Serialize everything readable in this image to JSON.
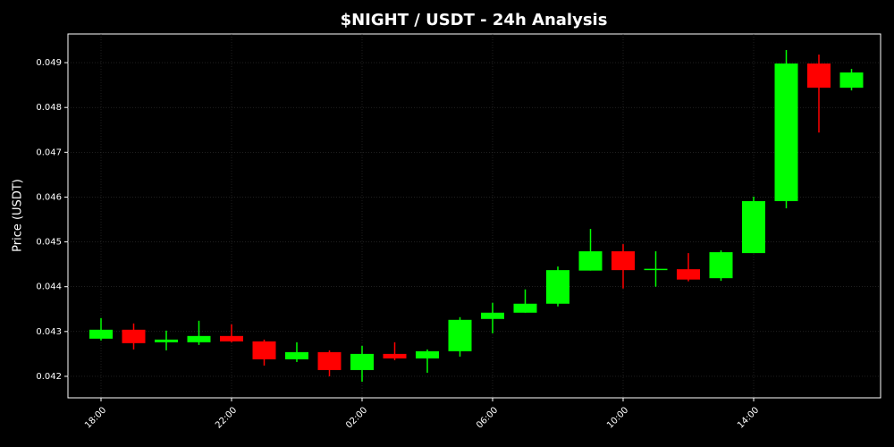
{
  "chart_data": {
    "type": "candlestick",
    "title": "$NIGHT / USDT - 24h Analysis",
    "y_label": "Price (USDT)",
    "categories": [
      "18:00",
      null,
      null,
      null,
      "22:00",
      null,
      null,
      null,
      "02:00",
      null,
      null,
      null,
      "06:00",
      null,
      null,
      null,
      "10:00",
      null,
      null,
      null,
      "14:00",
      null,
      null,
      null
    ],
    "open": [
      0.04284,
      0.04304,
      0.04276,
      0.04276,
      0.0429,
      0.04278,
      0.04238,
      0.04254,
      0.04214,
      0.0425,
      0.0424,
      0.04256,
      0.04328,
      0.04342,
      0.04362,
      0.04436,
      0.04479,
      0.04437,
      0.04439,
      0.04419,
      0.04475,
      0.04591,
      0.04898,
      0.04844
    ],
    "high": [
      0.0433,
      0.04318,
      0.04302,
      0.04324,
      0.04316,
      0.04282,
      0.04276,
      0.04258,
      0.04268,
      0.04276,
      0.0426,
      0.04332,
      0.04364,
      0.04394,
      0.04445,
      0.04529,
      0.04495,
      0.04479,
      0.04475,
      0.04481,
      0.04601,
      0.04928,
      0.04918,
      0.04886
    ],
    "low": [
      0.0428,
      0.0426,
      0.04258,
      0.0427,
      0.04276,
      0.04224,
      0.04232,
      0.042,
      0.04188,
      0.04236,
      0.04208,
      0.04244,
      0.04296,
      0.04342,
      0.04356,
      0.04436,
      0.04396,
      0.044,
      0.04412,
      0.04413,
      0.04475,
      0.04575,
      0.04744,
      0.04838
    ],
    "close": [
      0.04304,
      0.04274,
      0.04282,
      0.0429,
      0.04278,
      0.04238,
      0.04254,
      0.04214,
      0.0425,
      0.0424,
      0.04256,
      0.04326,
      0.04342,
      0.04362,
      0.04437,
      0.04479,
      0.04437,
      0.0444,
      0.04416,
      0.04477,
      0.04591,
      0.04898,
      0.04844,
      0.04878
    ],
    "up_color": "#00ff00",
    "down_color": "#ff0000",
    "ylim": [
      0.04152,
      0.04964
    ],
    "yticks": [
      0.042,
      0.043,
      0.044,
      0.045,
      0.046,
      0.047,
      0.048,
      0.049
    ],
    "grid": true
  }
}
